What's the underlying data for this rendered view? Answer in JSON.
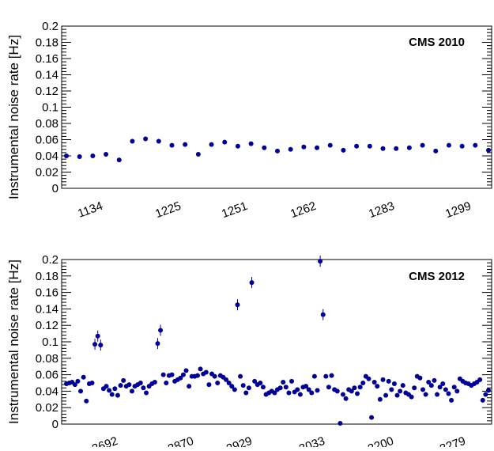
{
  "chart_data": [
    {
      "type": "scatter",
      "title": "CMS 2010",
      "ylabel": "Instrumental noise rate [Hz]",
      "xlabel": "",
      "ylim": [
        0,
        0.2
      ],
      "yticks": [
        "0",
        "0.02",
        "0.04",
        "0.06",
        "0.08",
        "0.1",
        "0.12",
        "0.14",
        "0.16",
        "0.18",
        "0.2"
      ],
      "x_tick_labels": [
        "1134",
        "1225",
        "1251",
        "1262",
        "1283",
        "1299"
      ],
      "grid": false,
      "marker_color": "#000099",
      "series": [
        {
          "values": [
            0.04,
            0.039,
            0.04,
            0.042,
            0.035,
            0.058,
            0.061,
            0.058,
            0.053,
            0.054,
            0.042,
            0.054,
            0.057,
            0.052,
            0.055,
            0.05,
            0.046,
            0.048,
            0.051,
            0.05,
            0.053,
            0.047,
            0.052,
            0.052,
            0.049,
            0.049,
            0.05,
            0.053,
            0.046,
            0.053,
            0.052,
            0.053,
            0.047
          ]
        }
      ]
    },
    {
      "type": "scatter",
      "title": "CMS 2012",
      "ylabel": "Instrumental noise rate [Hz]",
      "xlabel": "",
      "ylim": [
        0,
        0.2
      ],
      "yticks": [
        "0",
        "0.02",
        "0.04",
        "0.06",
        "0.08",
        "0.1",
        "0.12",
        "0.14",
        "0.16",
        "0.18",
        "0.2"
      ],
      "x_tick_labels": [
        "2692",
        "2870",
        "2929",
        "3033",
        "3200",
        "3279"
      ],
      "grid": false,
      "marker_color": "#000099",
      "series": [
        {
          "values": [
            0.049,
            0.05,
            0.051,
            0.048,
            0.052,
            0.04,
            0.057,
            0.028,
            0.049,
            0.05,
            0.097,
            0.107,
            0.096,
            0.043,
            0.046,
            0.041,
            0.036,
            0.043,
            0.035,
            0.047,
            0.053,
            0.046,
            0.048,
            0.04,
            0.046,
            0.048,
            0.05,
            0.044,
            0.038,
            0.046,
            0.049,
            0.051,
            0.098,
            0.114,
            0.06,
            0.05,
            0.059,
            0.06,
            0.052,
            0.054,
            0.056,
            0.06,
            0.065,
            0.046,
            0.058,
            0.058,
            0.059,
            0.067,
            0.061,
            0.063,
            0.048,
            0.061,
            0.058,
            0.05,
            0.059,
            0.057,
            0.054,
            0.05,
            0.046,
            0.042,
            0.145,
            0.058,
            0.047,
            0.038,
            0.044,
            0.172,
            0.052,
            0.048,
            0.05,
            0.045,
            0.036,
            0.038,
            0.04,
            0.038,
            0.042,
            0.044,
            0.051,
            0.045,
            0.038,
            0.052,
            0.039,
            0.042,
            0.036,
            0.045,
            0.046,
            0.042,
            0.038,
            0.058,
            0.041,
            0.198,
            0.133,
            0.058,
            0.045,
            0.059,
            0.042,
            0.04,
            0.001,
            0.036,
            0.031,
            0.042,
            0.04,
            0.044,
            0.037,
            0.045,
            0.05,
            0.058,
            0.055,
            0.008,
            0.051,
            0.046,
            0.03,
            0.054,
            0.035,
            0.052,
            0.042,
            0.049,
            0.035,
            0.04,
            0.047,
            0.038,
            0.036,
            0.033,
            0.044,
            0.058,
            0.056,
            0.042,
            0.036,
            0.051,
            0.047,
            0.053,
            0.036,
            0.045,
            0.049,
            0.042,
            0.037,
            0.029,
            0.045,
            0.04,
            0.055,
            0.052,
            0.05,
            0.049,
            0.047,
            0.049,
            0.051,
            0.054,
            0.029,
            0.036,
            0.041
          ]
        }
      ]
    }
  ]
}
